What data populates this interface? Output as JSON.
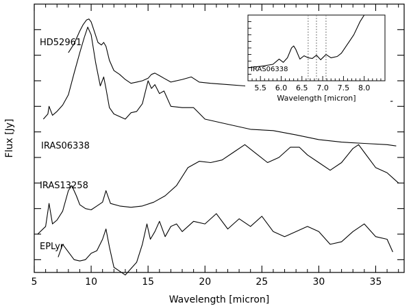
{
  "chart_data": [
    {
      "type": "line",
      "xlabel": "Wavelength [micron]",
      "ylabel": "Flux [Jy]",
      "xlim": [
        5,
        37.5
      ],
      "ylim": [
        0,
        10.5
      ],
      "xticks": [
        5,
        10,
        15,
        20,
        25,
        30,
        35
      ],
      "xtick_labels": [
        "5",
        "10",
        "15",
        "20",
        "25",
        "30",
        "35"
      ],
      "yticks": [
        0.5,
        1.5,
        2.5,
        3.5,
        4.5,
        5.5,
        6.5,
        7.5,
        8.5,
        9.5
      ],
      "yticks_labeled": false,
      "series": [
        {
          "name": "HD52961",
          "x": [
            8.0,
            8.5,
            9.0,
            9.3,
            9.6,
            9.8,
            10.0,
            10.3,
            10.6,
            10.9,
            11.1,
            11.3,
            11.6,
            12.0,
            12.5,
            13.0,
            13.5,
            14.0,
            14.5,
            15.0,
            15.3,
            15.6,
            16.0,
            16.4,
            17.0,
            18.0,
            18.8,
            19.5,
            20.5,
            22.0,
            23.5,
            25.0,
            26.5,
            28.0,
            30.0,
            32.0,
            34.0,
            35.5,
            36.5
          ],
          "y": [
            8.6,
            8.95,
            9.45,
            9.7,
            9.88,
            9.92,
            9.8,
            9.4,
            9.0,
            8.9,
            9.0,
            8.85,
            8.3,
            7.9,
            7.75,
            7.55,
            7.4,
            7.45,
            7.5,
            7.6,
            7.75,
            7.8,
            7.7,
            7.6,
            7.45,
            7.55,
            7.65,
            7.45,
            7.4,
            7.35,
            7.3,
            7.15,
            6.95,
            6.85,
            6.75,
            6.72,
            6.72,
            6.68,
            6.7
          ]
        },
        {
          "name": "IRAS06338",
          "x": [
            5.8,
            6.2,
            6.3,
            6.6,
            7.0,
            7.5,
            8.0,
            8.5,
            9.0,
            9.4,
            9.7,
            10.0,
            10.4,
            10.8,
            11.1,
            11.3,
            11.6,
            12.0,
            12.5,
            13.0,
            13.5,
            14.0,
            14.5,
            15.0,
            15.3,
            15.6,
            16.0,
            16.4,
            17.0,
            18.0,
            19.0,
            20.0,
            22.0,
            24.0,
            26.0,
            28.0,
            30.0,
            32.0,
            34.0,
            36.0,
            36.8
          ],
          "y": [
            6.0,
            6.2,
            6.5,
            6.15,
            6.3,
            6.55,
            6.95,
            7.8,
            8.6,
            9.2,
            9.6,
            9.3,
            8.2,
            7.3,
            7.65,
            7.2,
            6.45,
            6.2,
            6.1,
            6.0,
            6.25,
            6.3,
            6.6,
            7.5,
            7.2,
            7.35,
            7.0,
            7.1,
            6.5,
            6.45,
            6.45,
            6.0,
            5.8,
            5.6,
            5.55,
            5.38,
            5.2,
            5.1,
            5.05,
            5.0,
            4.95
          ]
        },
        {
          "name": "IRAS13258",
          "x": [
            5.3,
            6.0,
            6.3,
            6.6,
            7.0,
            7.5,
            8.0,
            8.3,
            8.7,
            9.0,
            9.5,
            10.0,
            10.5,
            11.0,
            11.3,
            11.7,
            12.5,
            13.5,
            14.5,
            15.5,
            16.5,
            17.5,
            18.5,
            19.5,
            20.5,
            21.5,
            22.5,
            23.5,
            24.5,
            25.5,
            26.5,
            27.5,
            28.3,
            29.0,
            30.0,
            31.0,
            32.0,
            33.0,
            33.5,
            34.0,
            35.0,
            36.0,
            37.0
          ],
          "y": [
            1.5,
            1.8,
            2.7,
            1.9,
            2.05,
            2.4,
            3.2,
            3.4,
            3.0,
            2.65,
            2.5,
            2.45,
            2.6,
            2.75,
            3.2,
            2.7,
            2.6,
            2.55,
            2.6,
            2.75,
            3.0,
            3.4,
            4.1,
            4.35,
            4.3,
            4.4,
            4.7,
            5.0,
            4.65,
            4.3,
            4.5,
            4.9,
            4.9,
            4.6,
            4.3,
            4.0,
            4.3,
            4.85,
            5.0,
            4.7,
            4.1,
            3.9,
            3.5
          ]
        },
        {
          "name": "EPLyr",
          "x": [
            7.1,
            7.5,
            8.0,
            8.5,
            9.0,
            9.5,
            10.0,
            10.5,
            11.0,
            11.3,
            11.6,
            12.0,
            12.5,
            13.0,
            13.5,
            14.0,
            14.5,
            14.9,
            15.2,
            15.6,
            16.0,
            16.5,
            17.0,
            17.5,
            18.0,
            19.0,
            20.0,
            21.0,
            22.0,
            23.0,
            24.0,
            25.0,
            26.0,
            27.0,
            28.0,
            29.0,
            30.0,
            31.0,
            32.0,
            33.0,
            34.0,
            35.0,
            36.0,
            36.5
          ],
          "y": [
            0.6,
            1.1,
            0.8,
            0.5,
            0.45,
            0.5,
            0.75,
            0.85,
            1.3,
            1.7,
            1.0,
            0.2,
            0.05,
            -0.1,
            0.15,
            0.4,
            1.1,
            1.9,
            1.3,
            1.6,
            2.0,
            1.4,
            1.8,
            1.9,
            1.6,
            2.0,
            1.9,
            2.3,
            1.7,
            2.1,
            1.8,
            2.2,
            1.6,
            1.4,
            1.6,
            1.8,
            1.6,
            1.1,
            1.2,
            1.6,
            1.9,
            1.4,
            1.3,
            0.8
          ]
        }
      ]
    },
    {
      "type": "line",
      "xlabel": "Wavelength [micron]",
      "xlim": [
        5.2,
        8.5
      ],
      "ylim": [
        0,
        10
      ],
      "xticks": [
        5.5,
        6.0,
        6.5,
        7.0,
        7.5,
        8.0
      ],
      "xtick_labels": [
        "5.5",
        "6.0",
        "6.5",
        "7.0",
        "7.5",
        "8.0"
      ],
      "dotted_vlines": [
        6.65,
        6.85,
        7.08
      ],
      "series": [
        {
          "name": "IRAS06338",
          "x": [
            5.2,
            5.5,
            5.8,
            5.95,
            6.05,
            6.15,
            6.25,
            6.3,
            6.35,
            6.45,
            6.55,
            6.65,
            6.75,
            6.85,
            6.95,
            7.08,
            7.2,
            7.35,
            7.45,
            7.6,
            7.75,
            7.9,
            8.0
          ],
          "y": [
            2.0,
            2.2,
            2.5,
            3.3,
            2.8,
            3.5,
            5.0,
            5.3,
            4.8,
            3.3,
            3.8,
            3.5,
            3.4,
            3.9,
            3.2,
            4.0,
            3.5,
            3.7,
            4.2,
            5.6,
            7.0,
            9.0,
            10.0
          ]
        }
      ]
    }
  ]
}
